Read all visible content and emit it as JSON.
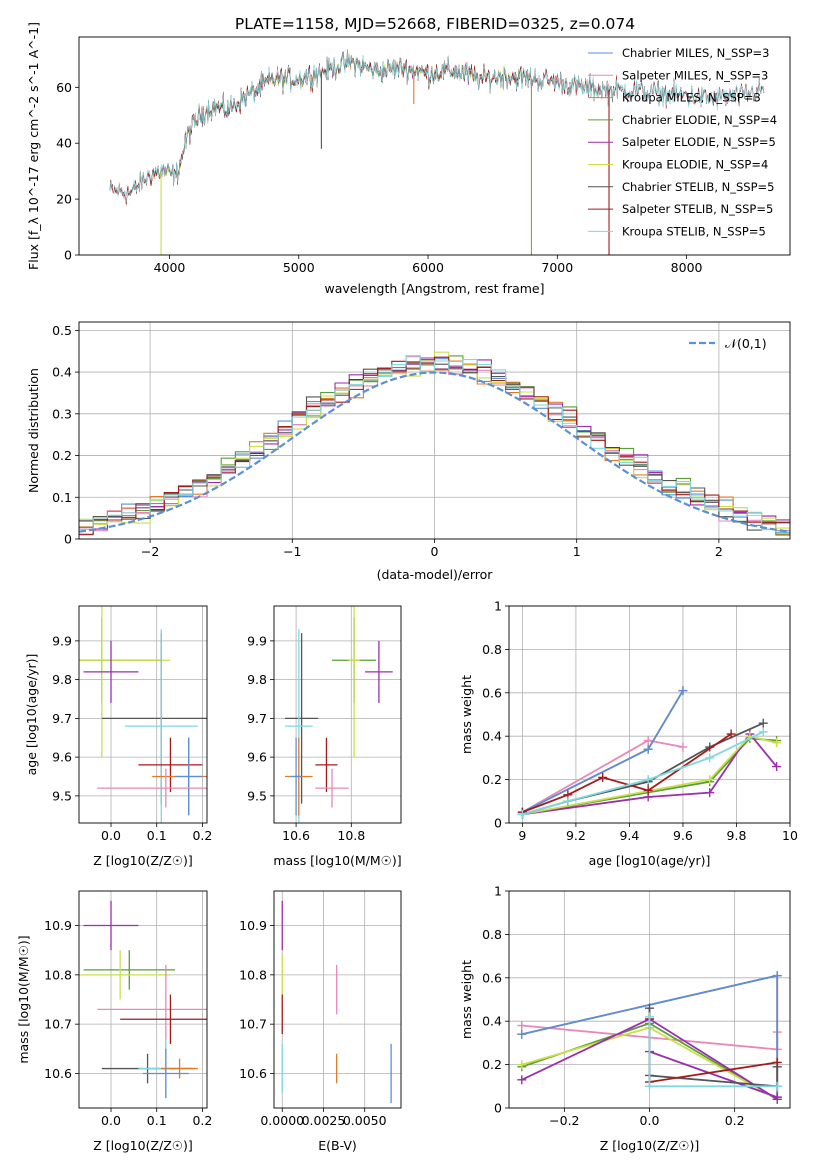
{
  "figure_title": "PLATE=1158, MJD=52668, FIBERID=0325, z=0.074",
  "colors": {
    "chabrier_miles": "#5b8fd6",
    "salpeter_miles": "#e887b9",
    "kroupa_miles": "#e07b2a",
    "chabrier_elodie": "#5a9e36",
    "salpeter_elodie": "#9b2fae",
    "kroupa_elodie": "#c8e04a",
    "chabrier_stelib": "#555555",
    "salpeter_stelib": "#a31c1c",
    "kroupa_stelib": "#7dd8e0",
    "gaussian": "#5b8fd6"
  },
  "chart_data": [
    {
      "id": "spectrum",
      "type": "line",
      "title": "",
      "xlabel": "wavelength [Angstrom, rest frame]",
      "ylabel": "Flux [f_λ 10^-17 erg cm^-2 s^-1 A^-1]",
      "xlim": [
        3300,
        8800
      ],
      "ylim": [
        0,
        78
      ],
      "xticks": [
        4000,
        5000,
        6000,
        7000,
        8000
      ],
      "yticks": [
        0,
        20,
        40,
        60
      ],
      "grid": false,
      "legend_position": "upper-right",
      "legend": [
        {
          "label": "Chabrier MILES, N_SSP=3",
          "color_key": "chabrier_miles"
        },
        {
          "label": "Salpeter MILES, N_SSP=3",
          "color_key": "salpeter_miles"
        },
        {
          "label": "Kroupa MILES, N_SSP=3",
          "color_key": "kroupa_miles"
        },
        {
          "label": "Chabrier ELODIE, N_SSP=4",
          "color_key": "chabrier_elodie"
        },
        {
          "label": "Salpeter ELODIE, N_SSP=5",
          "color_key": "salpeter_elodie"
        },
        {
          "label": "Kroupa ELODIE, N_SSP=4",
          "color_key": "kroupa_elodie"
        },
        {
          "label": "Chabrier STELIB, N_SSP=5",
          "color_key": "chabrier_stelib"
        },
        {
          "label": "Salpeter STELIB, N_SSP=5",
          "color_key": "salpeter_stelib"
        },
        {
          "label": "Kroupa STELIB, N_SSP=5",
          "color_key": "kroupa_stelib"
        }
      ],
      "continuum": {
        "x": [
          3550,
          3700,
          3850,
          3950,
          4050,
          4150,
          4250,
          4350,
          4450,
          4600,
          4800,
          5000,
          5200,
          5400,
          5600,
          5800,
          6000,
          6200,
          6400,
          6600,
          6800,
          7000,
          7200,
          7400,
          7600,
          7800,
          8000,
          8200,
          8400,
          8600
        ],
        "y": [
          23,
          22,
          29,
          30,
          28,
          44,
          51,
          53,
          52,
          57,
          63,
          63,
          66,
          69,
          66,
          67,
          65,
          66,
          63,
          64,
          63,
          62,
          60,
          59,
          59,
          58,
          57,
          56,
          57,
          59
        ]
      },
      "absorption_features": [
        {
          "x": 3935,
          "y_min": 0,
          "series": "kroupa_elodie"
        },
        {
          "x": 5175,
          "y_min": 38,
          "series": "chabrier_stelib"
        },
        {
          "x": 5890,
          "y_min": 54,
          "series": "kroupa_miles"
        },
        {
          "x": 6800,
          "y_min": 0,
          "series": "kroupa_miles"
        },
        {
          "x": 7400,
          "y_min": 0,
          "series": "salpeter_stelib"
        }
      ]
    },
    {
      "id": "residuals",
      "type": "histogram",
      "xlabel": "(data-model)/error",
      "ylabel": "Normed distribution",
      "xlim": [
        -2.5,
        2.5
      ],
      "ylim": [
        0,
        0.52
      ],
      "xticks": [
        -2,
        -1,
        0,
        1,
        2
      ],
      "yticks": [
        0.0,
        0.1,
        0.2,
        0.3,
        0.4,
        0.5
      ],
      "grid": true,
      "legend_position": "upper-right",
      "legend": [
        {
          "label": "𝒩(0,1)",
          "color_key": "gaussian"
        }
      ],
      "bin_width": 0.1
    },
    {
      "id": "age_vs_Z",
      "type": "errorbar",
      "xlabel": "Z [log10(Z/Z☉)]",
      "ylabel": "age [log10(age/yr)]",
      "xlim": [
        -0.07,
        0.21
      ],
      "ylim": [
        9.43,
        9.99
      ],
      "xticks": [
        0.0,
        0.1,
        0.2
      ],
      "xtick_labels": [
        "0.0",
        "0.1",
        "0.2"
      ],
      "yticks": [
        9.5,
        9.6,
        9.7,
        9.8,
        9.9
      ],
      "grid": true,
      "points": [
        {
          "series": "chabrier_elodie",
          "x": -0.02,
          "xerr": 0.13,
          "y": 9.85,
          "yerr": 0.11
        },
        {
          "series": "kroupa_elodie",
          "x": -0.02,
          "xerr": 0.15,
          "y": 9.85,
          "yerr": 0.25
        },
        {
          "series": "salpeter_elodie",
          "x": 0.0,
          "xerr": 0.06,
          "y": 9.82,
          "yerr": 0.08
        },
        {
          "series": "chabrier_stelib",
          "x": 0.11,
          "xerr": 0.13,
          "y": 9.7,
          "yerr": 0.22
        },
        {
          "series": "kroupa_stelib",
          "x": 0.11,
          "xerr": 0.08,
          "y": 9.68,
          "yerr": 0.25
        },
        {
          "series": "salpeter_stelib",
          "x": 0.13,
          "xerr": 0.07,
          "y": 9.58,
          "yerr": 0.07
        },
        {
          "series": "kroupa_miles",
          "x": 0.17,
          "xerr": 0.08,
          "y": 9.55,
          "yerr": 0.1
        },
        {
          "series": "chabrier_miles",
          "x": 0.17,
          "xerr": 0.03,
          "y": 9.55,
          "yerr": 0.1
        },
        {
          "series": "salpeter_miles",
          "x": 0.12,
          "xerr": 0.15,
          "y": 9.52,
          "yerr": 0.05
        }
      ]
    },
    {
      "id": "age_vs_mass",
      "type": "errorbar",
      "xlabel": "mass [log10(M/M☉)]",
      "ylabel": "",
      "xlim": [
        10.52,
        10.98
      ],
      "ylim": [
        9.43,
        9.99
      ],
      "xticks": [
        10.6,
        10.8
      ],
      "yticks": [
        9.5,
        9.6,
        9.7,
        9.8,
        9.9
      ],
      "grid": true,
      "points": [
        {
          "series": "chabrier_elodie",
          "x": 10.81,
          "xerr": 0.08,
          "y": 9.85,
          "yerr": 0.11
        },
        {
          "series": "kroupa_elodie",
          "x": 10.81,
          "xerr": 0.02,
          "y": 9.85,
          "yerr": 0.25
        },
        {
          "series": "salpeter_elodie",
          "x": 10.9,
          "xerr": 0.05,
          "y": 9.82,
          "yerr": 0.08
        },
        {
          "series": "chabrier_stelib",
          "x": 10.62,
          "xerr": 0.06,
          "y": 9.7,
          "yerr": 0.22
        },
        {
          "series": "kroupa_stelib",
          "x": 10.61,
          "xerr": 0.05,
          "y": 9.68,
          "yerr": 0.25
        },
        {
          "series": "salpeter_stelib",
          "x": 10.71,
          "xerr": 0.04,
          "y": 9.58,
          "yerr": 0.07
        },
        {
          "series": "kroupa_miles",
          "x": 10.61,
          "xerr": 0.05,
          "y": 9.55,
          "yerr": 0.1
        },
        {
          "series": "chabrier_miles",
          "x": 10.6,
          "xerr": 0.02,
          "y": 9.55,
          "yerr": 0.1
        },
        {
          "series": "salpeter_miles",
          "x": 10.73,
          "xerr": 0.06,
          "y": 9.52,
          "yerr": 0.05
        }
      ]
    },
    {
      "id": "mass_weight_vs_age",
      "type": "line",
      "xlabel": "age [log10(age/yr)]",
      "ylabel": "mass weight",
      "xlim": [
        8.95,
        10.0
      ],
      "ylim": [
        0,
        1
      ],
      "xticks": [
        9.0,
        9.2,
        9.4,
        9.6,
        9.8,
        10.0
      ],
      "yticks": [
        0.0,
        0.2,
        0.4,
        0.6,
        0.8,
        1.0
      ],
      "grid": true,
      "series": [
        {
          "name": "Kroupa MILES",
          "color_key": "kroupa_miles",
          "x": [
            9.0,
            9.47,
            9.6
          ],
          "y": [
            0.05,
            0.34,
            0.61
          ]
        },
        {
          "name": "Salpeter MILES",
          "color_key": "salpeter_miles",
          "x": [
            9.0,
            9.47,
            9.6
          ],
          "y": [
            0.05,
            0.38,
            0.35
          ]
        },
        {
          "name": "Chabrier MILES",
          "color_key": "chabrier_miles",
          "x": [
            9.0,
            9.47,
            9.6
          ],
          "y": [
            0.05,
            0.34,
            0.61
          ]
        },
        {
          "name": "Chabrier ELODIE",
          "color_key": "chabrier_elodie",
          "x": [
            9.0,
            9.7,
            9.85,
            9.95
          ],
          "y": [
            0.04,
            0.19,
            0.39,
            0.38
          ]
        },
        {
          "name": "Salpeter ELODIE",
          "color_key": "salpeter_elodie",
          "x": [
            9.0,
            9.47,
            9.7,
            9.85,
            9.95
          ],
          "y": [
            0.04,
            0.12,
            0.14,
            0.41,
            0.26
          ]
        },
        {
          "name": "Kroupa ELODIE",
          "color_key": "kroupa_elodie",
          "x": [
            9.0,
            9.7,
            9.85,
            9.95
          ],
          "y": [
            0.04,
            0.2,
            0.4,
            0.37
          ]
        },
        {
          "name": "Chabrier STELIB",
          "color_key": "chabrier_stelib",
          "x": [
            9.0,
            9.17,
            9.47,
            9.7,
            9.9
          ],
          "y": [
            0.04,
            0.1,
            0.19,
            0.35,
            0.46
          ]
        },
        {
          "name": "Salpeter STELIB",
          "color_key": "salpeter_stelib",
          "x": [
            9.0,
            9.17,
            9.3,
            9.47,
            9.78
          ],
          "y": [
            0.05,
            0.13,
            0.21,
            0.15,
            0.41
          ]
        },
        {
          "name": "Kroupa STELIB",
          "color_key": "kroupa_stelib",
          "x": [
            9.0,
            9.17,
            9.47,
            9.7,
            9.9
          ],
          "y": [
            0.04,
            0.1,
            0.2,
            0.3,
            0.42
          ]
        }
      ]
    },
    {
      "id": "mass_vs_Z",
      "type": "errorbar",
      "xlabel": "Z [log10(Z/Z☉)]",
      "ylabel": "mass [log10(M/M☉)]",
      "xlim": [
        -0.07,
        0.21
      ],
      "ylim": [
        10.53,
        10.97
      ],
      "xticks": [
        0.0,
        0.1,
        0.2
      ],
      "xtick_labels": [
        "0.0",
        "0.1",
        "0.2"
      ],
      "yticks": [
        10.6,
        10.7,
        10.8,
        10.9
      ],
      "grid": true,
      "points": [
        {
          "series": "salpeter_elodie",
          "x": 0.0,
          "xerr": 0.06,
          "y": 10.9,
          "yerr": 0.05
        },
        {
          "series": "chabrier_elodie",
          "x": 0.04,
          "xerr": 0.1,
          "y": 10.81,
          "yerr": 0.04
        },
        {
          "series": "kroupa_elodie",
          "x": 0.02,
          "xerr": 0.11,
          "y": 10.8,
          "yerr": 0.05
        },
        {
          "series": "salpeter_miles",
          "x": 0.12,
          "xerr": 0.15,
          "y": 10.73,
          "yerr": 0.09
        },
        {
          "series": "salpeter_stelib",
          "x": 0.13,
          "xerr": 0.11,
          "y": 10.71,
          "yerr": 0.05
        },
        {
          "series": "chabrier_stelib",
          "x": 0.08,
          "xerr": 0.1,
          "y": 10.61,
          "yerr": 0.03
        },
        {
          "series": "kroupa_stelib",
          "x": 0.12,
          "xerr": 0.06,
          "y": 10.61,
          "yerr": 0.06
        },
        {
          "series": "kroupa_miles",
          "x": 0.15,
          "xerr": 0.04,
          "y": 10.61,
          "yerr": 0.02
        },
        {
          "series": "chabrier_miles",
          "x": 0.12,
          "xerr": 0.05,
          "y": 10.6,
          "yerr": 0.05
        }
      ]
    },
    {
      "id": "mass_vs_ebv",
      "type": "errorbar",
      "xlabel": "E(B-V)",
      "ylabel": "",
      "xlim": [
        -0.0005,
        0.0072
      ],
      "ylim": [
        10.53,
        10.97
      ],
      "xticks": [
        0.0,
        0.0025,
        0.005
      ],
      "xtick_labels": [
        "0.0000",
        "0.0025",
        "0.0050"
      ],
      "yticks": [
        10.6,
        10.7,
        10.8,
        10.9
      ],
      "grid": true,
      "points": [
        {
          "series": "salpeter_elodie",
          "x": 0.0,
          "xerr": 0.0,
          "y": 10.9,
          "yerr": 0.05
        },
        {
          "series": "kroupa_elodie",
          "x": 0.0,
          "xerr": 0.0,
          "y": 10.8,
          "yerr": 0.04
        },
        {
          "series": "salpeter_stelib",
          "x": 0.0,
          "xerr": 0.0,
          "y": 10.72,
          "yerr": 0.04
        },
        {
          "series": "kroupa_stelib",
          "x": 0.0,
          "xerr": 0.0,
          "y": 10.61,
          "yerr": 0.05
        },
        {
          "series": "salpeter_miles",
          "x": 0.0033,
          "xerr": 0.0,
          "y": 10.77,
          "yerr": 0.05
        },
        {
          "series": "kroupa_miles",
          "x": 0.0033,
          "xerr": 0.0,
          "y": 10.61,
          "yerr": 0.03
        },
        {
          "series": "chabrier_miles",
          "x": 0.0066,
          "xerr": 0.0,
          "y": 10.6,
          "yerr": 0.06
        }
      ]
    },
    {
      "id": "mass_weight_vs_Z",
      "type": "line",
      "xlabel": "Z [log10(Z/Z☉)]",
      "ylabel": "mass weight",
      "xlim": [
        -0.33,
        0.33
      ],
      "ylim": [
        0,
        1
      ],
      "xticks": [
        -0.2,
        0.0,
        0.2
      ],
      "xtick_labels": [
        "−0.2",
        "0.0",
        "0.2"
      ],
      "yticks": [
        0.0,
        0.2,
        0.4,
        0.6,
        0.8,
        1.0
      ],
      "grid": true,
      "series": [
        {
          "name": "Salpeter MILES",
          "color_key": "salpeter_miles",
          "x": [
            -0.3,
            0.3,
            0.3
          ],
          "y": [
            0.38,
            0.27,
            0.35
          ]
        },
        {
          "name": "Kroupa MILES",
          "color_key": "kroupa_miles",
          "x": [
            -0.3,
            0.3,
            0.3
          ],
          "y": [
            0.34,
            0.61,
            0.05
          ]
        },
        {
          "name": "Chabrier MILES",
          "color_key": "chabrier_miles",
          "x": [
            -0.3,
            0.3,
            0.3
          ],
          "y": [
            0.34,
            0.61,
            0.05
          ]
        },
        {
          "name": "Chabrier ELODIE",
          "color_key": "chabrier_elodie",
          "x": [
            -0.3,
            0.0,
            0.3
          ],
          "y": [
            0.19,
            0.39,
            0.04
          ]
        },
        {
          "name": "Kroupa ELODIE",
          "color_key": "kroupa_elodie",
          "x": [
            -0.3,
            0.0,
            0.3
          ],
          "y": [
            0.2,
            0.37,
            0.04
          ]
        },
        {
          "name": "Salpeter ELODIE",
          "color_key": "salpeter_elodie",
          "x": [
            -0.3,
            0.0,
            0.3
          ],
          "y": [
            0.13,
            0.41,
            0.04
          ]
        },
        {
          "name": "Salpeter ELODIE b",
          "color_key": "salpeter_elodie",
          "x": [
            0.0,
            0.3
          ],
          "y": [
            0.26,
            0.05
          ]
        },
        {
          "name": "Chabrier STELIB",
          "color_key": "chabrier_stelib",
          "x": [
            0.0,
            0.0,
            0.3,
            0.3
          ],
          "y": [
            0.46,
            0.15,
            0.1,
            0.19
          ]
        },
        {
          "name": "Salpeter STELIB",
          "color_key": "salpeter_stelib",
          "x": [
            0.0,
            0.0,
            0.3
          ],
          "y": [
            0.41,
            0.12,
            0.21
          ]
        },
        {
          "name": "Kroupa STELIB",
          "color_key": "kroupa_stelib",
          "x": [
            0.0,
            0.0,
            0.3
          ],
          "y": [
            0.42,
            0.1,
            0.1
          ]
        }
      ]
    }
  ]
}
